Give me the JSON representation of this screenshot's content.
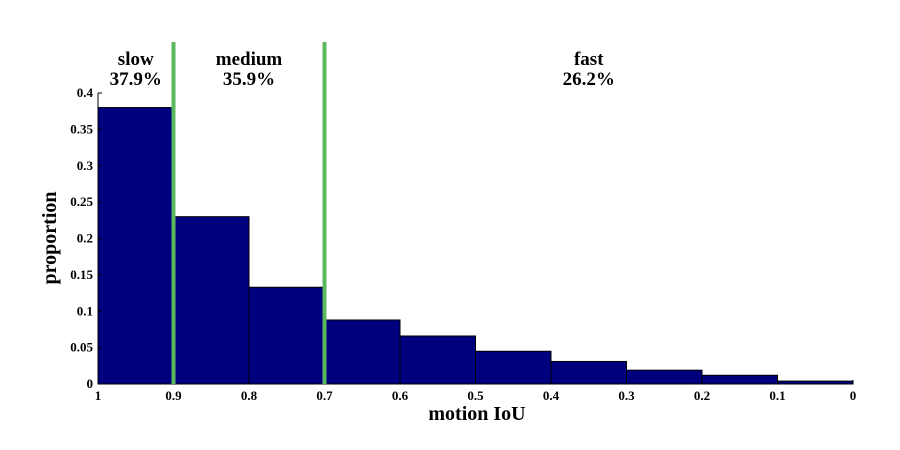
{
  "chart_data": {
    "type": "bar",
    "xlabel": "motion IoU",
    "ylabel": "proportion",
    "x_reversed": true,
    "xlim": [
      0,
      1
    ],
    "ylim": [
      0,
      0.4
    ],
    "bin_edges": [
      1,
      0.9,
      0.8,
      0.7,
      0.6,
      0.5,
      0.4,
      0.3,
      0.2,
      0.1,
      0
    ],
    "values": [
      0.38,
      0.23,
      0.133,
      0.088,
      0.066,
      0.045,
      0.031,
      0.019,
      0.012,
      0.004
    ],
    "x_ticks": [
      "1",
      "0.9",
      "0.8",
      "0.7",
      "0.6",
      "0.5",
      "0.4",
      "0.3",
      "0.2",
      "0.1",
      "0"
    ],
    "y_ticks": [
      "0",
      "0.05",
      "0.1",
      "0.15",
      "0.2",
      "0.25",
      "0.3",
      "0.35",
      "0.4"
    ],
    "bar_color": "#00007f",
    "threshold_color": "#5cb85c",
    "thresholds": [
      0.9,
      0.7
    ],
    "regions": [
      {
        "name": "slow",
        "percent": "37.9%",
        "center": 0.95
      },
      {
        "name": "medium",
        "percent": "35.9%",
        "center": 0.8
      },
      {
        "name": "fast",
        "percent": "26.2%",
        "center": 0.35
      }
    ]
  }
}
